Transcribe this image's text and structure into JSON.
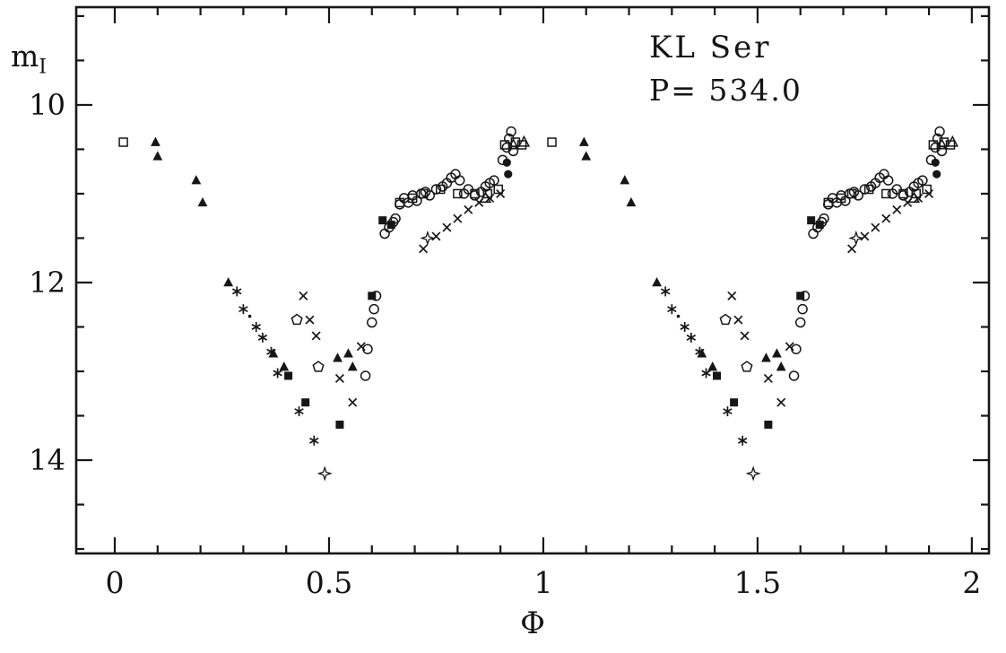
{
  "chart_data": {
    "type": "scatter",
    "annotations": [
      "KL Ser",
      "P= 534.0"
    ],
    "xlabel": "Φ",
    "ylabel": "m_I",
    "ylabel_base": "m",
    "ylabel_sub": "I",
    "marker_color": "#161616",
    "background_color": "#ffffff",
    "grid": false,
    "legend": false,
    "y_inverted": true,
    "phase_duplication_offset": 1.0,
    "x_axis": {
      "min": -0.09,
      "max": 2.04,
      "major_ticks": [
        0,
        0.5,
        1,
        1.5,
        2
      ],
      "tick_labels": [
        "0",
        "0.5",
        "1",
        "1.5",
        "2"
      ],
      "minor_step": 0.1
    },
    "y_axis": {
      "min": 8.9,
      "max": 15.05,
      "major_ticks": [
        10,
        12,
        14
      ],
      "tick_labels": [
        "10",
        "12",
        "14"
      ],
      "minor_step": 0.5
    },
    "series": [
      {
        "name": "open-square",
        "symbol": "open-square",
        "points": [
          [
            0.02,
            10.42
          ],
          [
            0.665,
            11.1
          ],
          [
            0.695,
            11.05
          ],
          [
            0.72,
            11.0
          ],
          [
            0.76,
            10.95
          ],
          [
            0.8,
            11.0
          ],
          [
            0.84,
            11.0
          ],
          [
            0.87,
            11.0
          ],
          [
            0.895,
            10.95
          ],
          [
            0.91,
            10.45
          ],
          [
            0.935,
            10.42
          ],
          [
            0.95,
            10.45
          ]
        ]
      },
      {
        "name": "filled-triangle",
        "symbol": "filled-triangle",
        "points": [
          [
            0.095,
            10.42
          ],
          [
            0.1,
            10.58
          ],
          [
            0.19,
            10.85
          ],
          [
            0.205,
            11.1
          ],
          [
            0.265,
            12.0
          ],
          [
            0.37,
            12.8
          ],
          [
            0.395,
            12.95
          ],
          [
            0.52,
            12.85
          ],
          [
            0.545,
            12.8
          ],
          [
            0.555,
            12.95
          ]
        ]
      },
      {
        "name": "asterisk",
        "symbol": "asterisk",
        "points": [
          [
            0.285,
            12.1
          ],
          [
            0.3,
            12.3
          ],
          [
            0.33,
            12.5
          ],
          [
            0.345,
            12.62
          ],
          [
            0.365,
            12.78
          ],
          [
            0.38,
            13.02
          ],
          [
            0.43,
            13.45
          ],
          [
            0.465,
            13.78
          ]
        ]
      },
      {
        "name": "cross",
        "symbol": "cross",
        "points": [
          [
            0.44,
            12.15
          ],
          [
            0.455,
            12.42
          ],
          [
            0.47,
            12.6
          ],
          [
            0.525,
            13.08
          ],
          [
            0.555,
            13.35
          ],
          [
            0.575,
            12.72
          ],
          [
            0.72,
            11.62
          ],
          [
            0.75,
            11.48
          ],
          [
            0.775,
            11.38
          ],
          [
            0.8,
            11.28
          ],
          [
            0.825,
            11.18
          ],
          [
            0.85,
            11.1
          ],
          [
            0.875,
            11.05
          ],
          [
            0.9,
            11.0
          ]
        ]
      },
      {
        "name": "open-circle",
        "symbol": "open-circle",
        "points": [
          [
            0.585,
            13.05
          ],
          [
            0.59,
            12.75
          ],
          [
            0.6,
            12.45
          ],
          [
            0.605,
            12.3
          ],
          [
            0.61,
            12.15
          ],
          [
            0.63,
            11.45
          ],
          [
            0.64,
            11.38
          ],
          [
            0.65,
            11.32
          ],
          [
            0.655,
            11.28
          ],
          [
            0.665,
            11.12
          ],
          [
            0.675,
            11.05
          ],
          [
            0.685,
            11.1
          ],
          [
            0.695,
            11.02
          ],
          [
            0.705,
            11.08
          ],
          [
            0.715,
            11.0
          ],
          [
            0.725,
            10.98
          ],
          [
            0.735,
            11.02
          ],
          [
            0.75,
            10.95
          ],
          [
            0.765,
            10.92
          ],
          [
            0.775,
            10.88
          ],
          [
            0.785,
            10.82
          ],
          [
            0.795,
            10.78
          ],
          [
            0.805,
            10.85
          ],
          [
            0.815,
            11.0
          ],
          [
            0.825,
            10.95
          ],
          [
            0.84,
            11.02
          ],
          [
            0.855,
            10.98
          ],
          [
            0.865,
            10.92
          ],
          [
            0.875,
            10.88
          ],
          [
            0.885,
            10.85
          ],
          [
            0.905,
            10.62
          ],
          [
            0.915,
            10.48
          ],
          [
            0.92,
            10.38
          ],
          [
            0.925,
            10.3
          ],
          [
            0.93,
            10.52
          ]
        ]
      },
      {
        "name": "filled-square",
        "symbol": "filled-square",
        "points": [
          [
            0.405,
            13.05
          ],
          [
            0.445,
            13.35
          ],
          [
            0.525,
            13.6
          ],
          [
            0.6,
            12.15
          ],
          [
            0.625,
            11.3
          ],
          [
            0.645,
            11.35
          ]
        ]
      },
      {
        "name": "open-pentagon",
        "symbol": "open-pentagon",
        "points": [
          [
            0.425,
            12.42
          ],
          [
            0.475,
            12.95
          ]
        ]
      },
      {
        "name": "filled-circle",
        "symbol": "filled-circle",
        "points": [
          [
            0.915,
            10.65
          ],
          [
            0.918,
            10.78
          ]
        ]
      },
      {
        "name": "open-triangle",
        "symbol": "open-triangle",
        "points": [
          [
            0.865,
            11.05
          ],
          [
            0.93,
            10.45
          ],
          [
            0.955,
            10.42
          ]
        ]
      },
      {
        "name": "four-point-star",
        "symbol": "four-point-star",
        "points": [
          [
            0.49,
            14.15
          ],
          [
            0.73,
            11.5
          ]
        ]
      },
      {
        "name": "dot",
        "symbol": "dot",
        "points": [
          [
            0.315,
            12.38
          ]
        ]
      }
    ]
  }
}
